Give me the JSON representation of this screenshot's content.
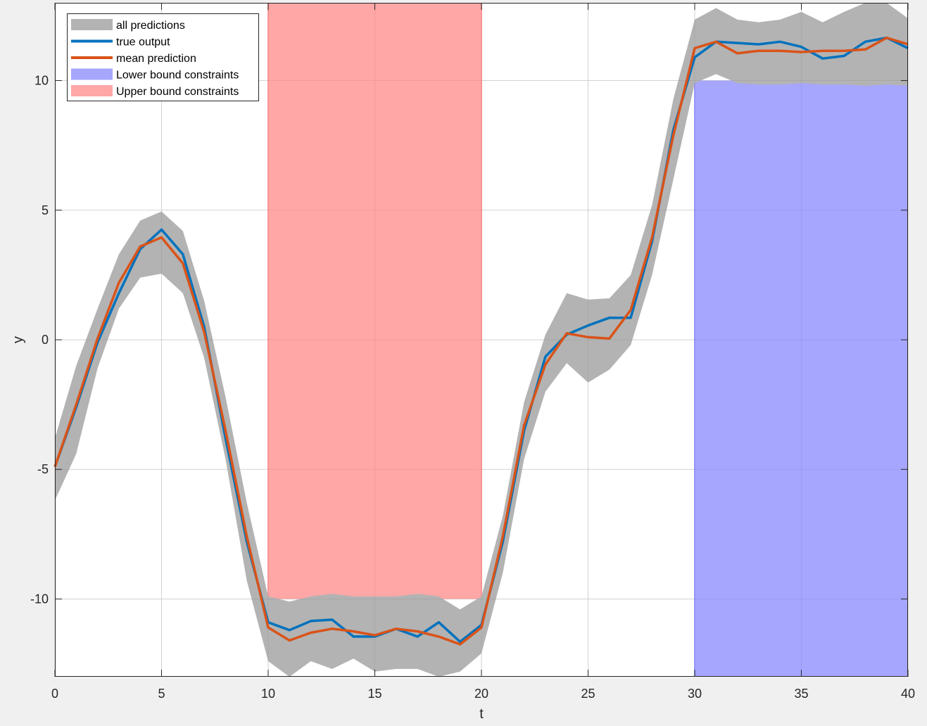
{
  "chart_data": {
    "type": "line",
    "xlabel": "t",
    "ylabel": "y",
    "xlim": [
      0,
      40
    ],
    "ylim": [
      -13,
      13
    ],
    "xticks": [
      0,
      5,
      10,
      15,
      20,
      25,
      30,
      35,
      40
    ],
    "yticks": [
      -10,
      -5,
      0,
      5,
      10
    ],
    "ytick_labels": [
      "-10",
      "-5",
      "0",
      "5",
      "10"
    ],
    "grid": true,
    "legend_position": "top-left",
    "legend": [
      {
        "label": "all predictions",
        "kind": "patch",
        "color": "#b3b3b3"
      },
      {
        "label": "true output",
        "kind": "line",
        "color": "#0072bd"
      },
      {
        "label": "mean prediction",
        "kind": "line",
        "color": "#d95319"
      },
      {
        "label": "Lower bound constraints",
        "kind": "patch",
        "color": "#a6a6ff"
      },
      {
        "label": "Upper bound constraints",
        "kind": "patch",
        "color": "#ffa6a6"
      }
    ],
    "constraint_regions": {
      "upper": {
        "x_start": 10,
        "x_end": 20,
        "y_bound": -10,
        "color": "#ffa6a6"
      },
      "lower": {
        "x_start": 30,
        "x_end": 40,
        "y_bound": 10,
        "color": "#a6a6ff"
      }
    },
    "x": [
      0,
      1,
      2,
      3,
      4,
      5,
      6,
      7,
      8,
      9,
      10,
      11,
      12,
      13,
      14,
      15,
      16,
      17,
      18,
      19,
      20,
      21,
      22,
      23,
      24,
      25,
      26,
      27,
      28,
      29,
      30,
      31,
      32,
      33,
      34,
      35,
      36,
      37,
      38,
      39,
      40
    ],
    "band": {
      "name": "all predictions",
      "upper": [
        -3.8,
        -1.0,
        1.2,
        3.3,
        4.6,
        4.95,
        4.2,
        1.5,
        -2.2,
        -6.3,
        -9.9,
        -10.1,
        -9.9,
        -9.8,
        -9.9,
        -9.9,
        -9.9,
        -9.8,
        -9.9,
        -10.4,
        -9.9,
        -6.8,
        -2.4,
        0.2,
        1.8,
        1.55,
        1.6,
        2.5,
        5.2,
        9.3,
        12.35,
        12.8,
        12.35,
        12.25,
        12.35,
        12.65,
        12.25,
        12.65,
        13.0,
        13.0,
        12.4
      ],
      "lower": [
        -6.2,
        -4.4,
        -1.1,
        1.2,
        2.4,
        2.55,
        1.8,
        -0.7,
        -4.6,
        -9.3,
        -12.4,
        -13.0,
        -12.4,
        -12.7,
        -12.3,
        -12.8,
        -12.7,
        -12.7,
        -13.0,
        -12.8,
        -12.1,
        -9.0,
        -4.6,
        -2.0,
        -0.9,
        -1.65,
        -1.15,
        -0.2,
        2.5,
        6.2,
        9.9,
        10.25,
        9.9,
        9.85,
        9.85,
        9.9,
        9.85,
        9.85,
        9.8,
        9.85,
        9.8
      ]
    },
    "series": [
      {
        "name": "true output",
        "color": "#0072bd",
        "values": [
          -4.9,
          -2.6,
          -0.1,
          1.8,
          3.5,
          4.25,
          3.3,
          0.5,
          -3.8,
          -7.8,
          -10.9,
          -11.2,
          -10.85,
          -10.8,
          -11.45,
          -11.45,
          -11.15,
          -11.45,
          -10.9,
          -11.65,
          -11.0,
          -7.8,
          -3.5,
          -0.65,
          0.2,
          0.55,
          0.85,
          0.85,
          3.8,
          8.1,
          10.9,
          11.5,
          11.45,
          11.4,
          11.5,
          11.3,
          10.85,
          10.95,
          11.5,
          11.65,
          11.25
        ]
      },
      {
        "name": "mean prediction",
        "color": "#d95319",
        "values": [
          -4.9,
          -2.5,
          0.05,
          2.2,
          3.6,
          3.95,
          2.95,
          0.3,
          -3.5,
          -7.6,
          -11.1,
          -11.6,
          -11.3,
          -11.15,
          -11.25,
          -11.4,
          -11.15,
          -11.25,
          -11.45,
          -11.75,
          -11.1,
          -7.6,
          -3.3,
          -0.95,
          0.25,
          0.1,
          0.05,
          1.15,
          3.95,
          7.9,
          11.25,
          11.5,
          11.05,
          11.15,
          11.15,
          11.1,
          11.15,
          11.15,
          11.2,
          11.65,
          11.4
        ]
      }
    ]
  }
}
